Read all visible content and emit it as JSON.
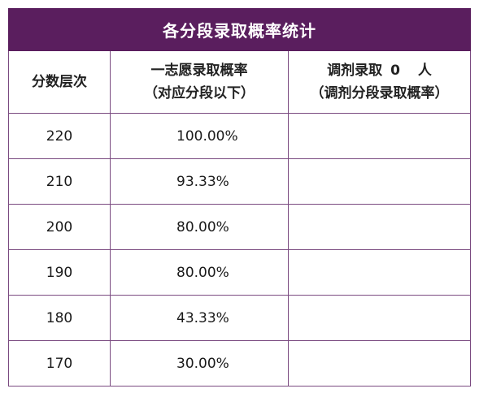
{
  "title": "各分段录取概率统计",
  "headers": {
    "col1": "分数层次",
    "col2_line1": "一志愿录取概率",
    "col2_line2": "（对应分段以下）",
    "col3_line1_prefix": "调剂录取",
    "col3_count": "0",
    "col3_line1_suffix": "人",
    "col3_line2": "（调剂分段录取概率）"
  },
  "rows": [
    {
      "score": "220",
      "rate": "100.00%",
      "adjust": ""
    },
    {
      "score": "210",
      "rate": "93.33%",
      "adjust": ""
    },
    {
      "score": "200",
      "rate": "80.00%",
      "adjust": ""
    },
    {
      "score": "190",
      "rate": "80.00%",
      "adjust": ""
    },
    {
      "score": "180",
      "rate": "43.33%",
      "adjust": ""
    },
    {
      "score": "170",
      "rate": "30.00%",
      "adjust": ""
    }
  ],
  "colors": {
    "header_bg": "#5a1e5e",
    "border": "#7a4a80"
  }
}
